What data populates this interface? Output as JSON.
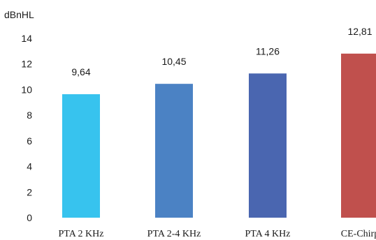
{
  "chart_data": {
    "type": "bar",
    "ylabel": "dBnHL",
    "xlabel": "",
    "categories": [
      "PTA 2 KHz",
      "PTA 2-4 KHz",
      "PTA 4 KHz",
      "CE-Chirp"
    ],
    "values": [
      9.64,
      10.45,
      11.26,
      12.81
    ],
    "data_labels": [
      "9,64",
      "10,45",
      "11,26",
      "12,81"
    ],
    "colors": [
      "#37c3ee",
      "#4b82c4",
      "#4a66b0",
      "#c0504d"
    ],
    "ylim": [
      0,
      14
    ],
    "yticks": [
      0,
      2,
      4,
      6,
      8,
      10,
      12,
      14
    ],
    "grid": false,
    "legend": "none"
  }
}
